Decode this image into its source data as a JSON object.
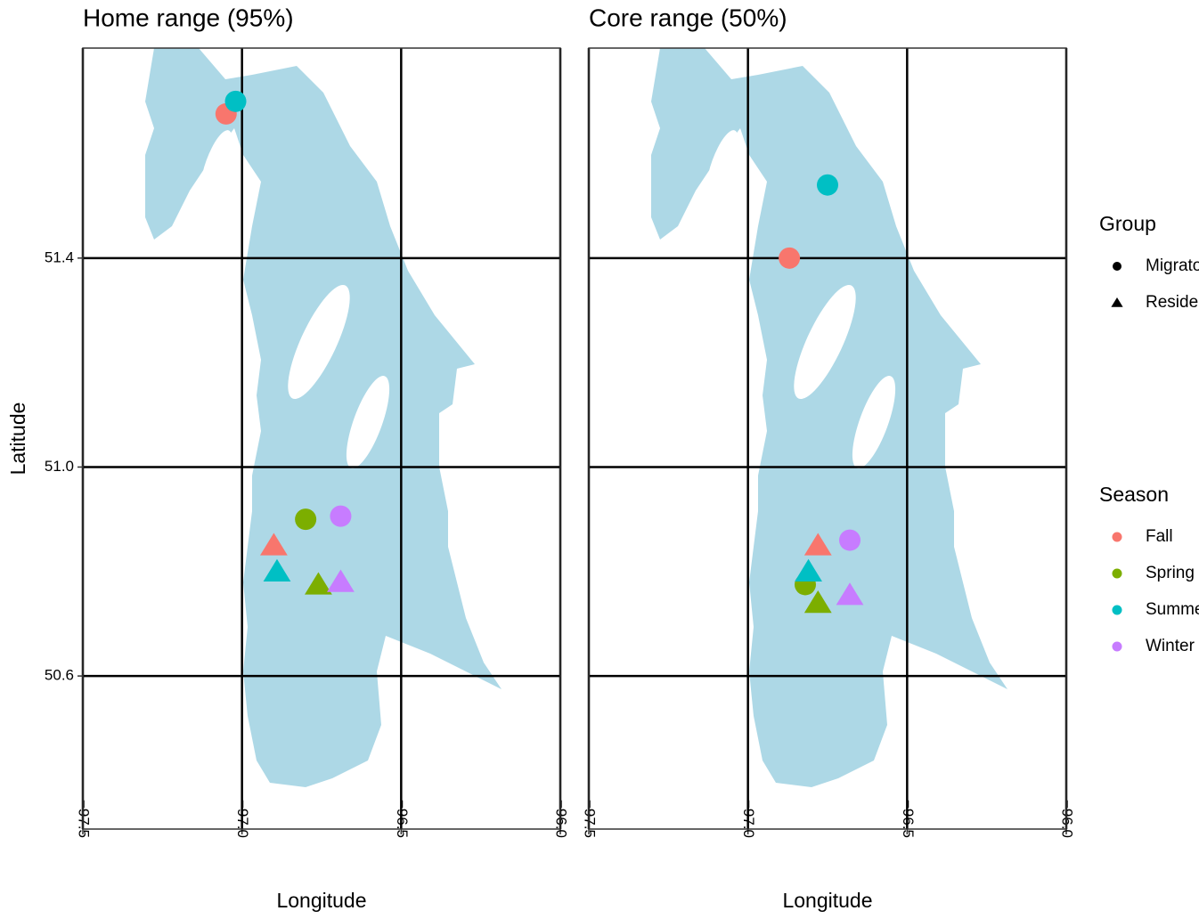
{
  "chart_data": [
    {
      "type": "scatter",
      "title": "Home range (95%)",
      "x_label": "Longitude",
      "y_label": "Latitude",
      "xlim": [
        -97.5,
        -96.0
      ],
      "ylim": [
        50.307,
        51.802
      ],
      "xticks": [
        {
          "value": -97.5,
          "label": "−97.5"
        },
        {
          "value": -97.0,
          "label": "−97.0"
        },
        {
          "value": -96.5,
          "label": "−96.5"
        },
        {
          "value": -96.0,
          "label": "−96.0"
        }
      ],
      "yticks": [
        {
          "value": 51.4,
          "label": "51.4"
        },
        {
          "value": 51.0,
          "label": "51.0"
        },
        {
          "value": 50.6,
          "label": "50.6"
        }
      ],
      "grid": true,
      "series": [
        {
          "shape": "circle",
          "colors": [
            "#F8766D",
            "#7CAE00",
            "#00BFC4",
            "#C77CFF"
          ],
          "x": [
            -97.05,
            -96.8,
            -97.02,
            -96.69
          ],
          "values": [
            51.676,
            50.9,
            51.7,
            50.906
          ]
        },
        {
          "shape": "triangle",
          "colors": [
            "#F8766D",
            "#7CAE00",
            "#00BFC4",
            "#C77CFF"
          ],
          "x": [
            -96.9,
            -96.76,
            -96.89,
            -96.69
          ],
          "values": [
            50.85,
            50.775,
            50.8,
            50.78
          ]
        }
      ]
    },
    {
      "type": "scatter",
      "title": "Core range (50%)",
      "x_label": "Longitude",
      "xlim": [
        -97.5,
        -96.0
      ],
      "ylim": [
        50.307,
        51.802
      ],
      "xticks": [
        {
          "value": -97.5,
          "label": "−97.5"
        },
        {
          "value": -97.0,
          "label": "−97.0"
        },
        {
          "value": -96.5,
          "label": "−96.5"
        },
        {
          "value": -96.0,
          "label": "−96.0"
        }
      ],
      "yticks": [
        51.4,
        51.0,
        50.6
      ],
      "grid": true,
      "series": [
        {
          "shape": "circle",
          "colors": [
            "#F8766D",
            "#7CAE00",
            "#00BFC4",
            "#C77CFF"
          ],
          "x": [
            -96.87,
            -96.82,
            -96.75,
            -96.68
          ],
          "values": [
            51.4,
            50.775,
            51.54,
            50.86
          ]
        },
        {
          "shape": "triangle",
          "colors": [
            "#F8766D",
            "#7CAE00",
            "#00BFC4",
            "#C77CFF"
          ],
          "x": [
            -96.78,
            -96.78,
            -96.81,
            -96.68
          ],
          "values": [
            50.85,
            50.74,
            50.8,
            50.755
          ]
        }
      ]
    }
  ],
  "legend": {
    "group": {
      "title": "Group",
      "items": [
        {
          "name": "Migratory",
          "shape": "circle"
        },
        {
          "name": "Resident",
          "shape": "triangle"
        }
      ]
    },
    "season": {
      "title": "Season",
      "items": [
        {
          "name": "Fall",
          "color": "#F8766D"
        },
        {
          "name": "Spring",
          "color": "#7CAE00"
        },
        {
          "name": "Summer",
          "color": "#00BFC4"
        },
        {
          "name": "Winter",
          "color": "#C77CFF"
        }
      ]
    }
  }
}
